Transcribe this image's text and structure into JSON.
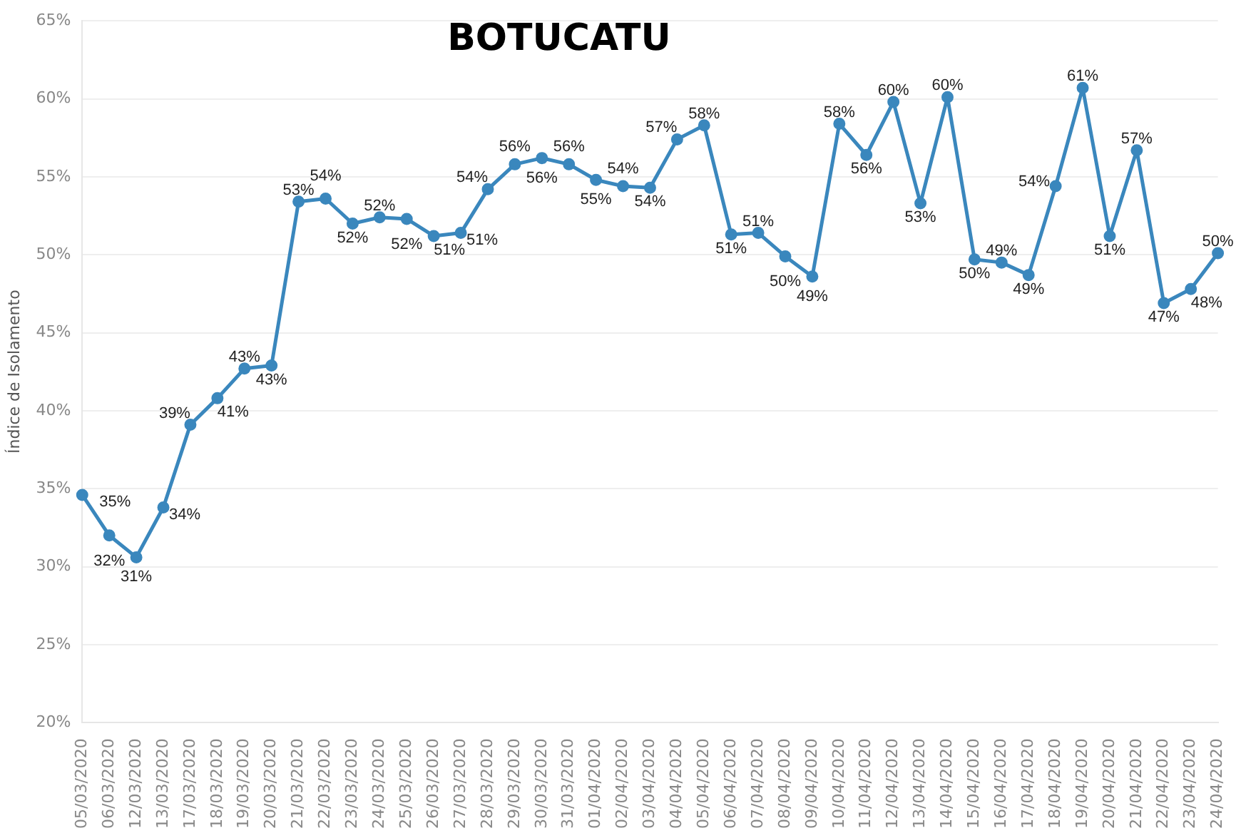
{
  "chart_data": {
    "type": "line",
    "title": "BOTUCATU",
    "ylabel": "Índice de Isolamento",
    "categories": [
      "05/03/2020",
      "06/03/2020",
      "12/03/2020",
      "13/03/2020",
      "17/03/2020",
      "18/03/2020",
      "19/03/2020",
      "20/03/2020",
      "21/03/2020",
      "22/03/2020",
      "23/03/2020",
      "24/03/2020",
      "25/03/2020",
      "26/03/2020",
      "27/03/2020",
      "28/03/2020",
      "29/03/2020",
      "30/03/2020",
      "31/03/2020",
      "01/04/2020",
      "02/04/2020",
      "03/04/2020",
      "04/04/2020",
      "05/04/2020",
      "06/04/2020",
      "07/04/2020",
      "08/04/2020",
      "09/04/2020",
      "10/04/2020",
      "11/04/2020",
      "12/04/2020",
      "13/04/2020",
      "14/04/2020",
      "15/04/2020",
      "16/04/2020",
      "17/04/2020",
      "18/04/2020",
      "19/04/2020",
      "20/04/2020",
      "21/04/2020",
      "22/04/2020",
      "23/04/2020",
      "24/04/2020"
    ],
    "series": [
      {
        "color": "#3a87bd",
        "values": [
          34.6,
          32.0,
          30.6,
          33.8,
          39.1,
          40.8,
          42.7,
          42.9,
          53.4,
          53.6,
          52.0,
          52.4,
          52.3,
          51.2,
          51.4,
          54.2,
          55.8,
          56.2,
          55.8,
          54.8,
          54.4,
          54.3,
          57.4,
          58.3,
          51.3,
          51.4,
          49.9,
          48.6,
          58.4,
          56.4,
          59.8,
          53.3,
          60.1,
          49.7,
          49.5,
          48.7,
          54.4,
          60.7,
          51.2,
          56.7,
          46.9,
          47.8,
          50.1
        ],
        "value_labels": [
          "35%",
          "32%",
          "31%",
          "34%",
          "39%",
          "41%",
          "43%",
          "43%",
          "53%",
          "54%",
          "52%",
          "52%",
          "52%",
          "51%",
          "51%",
          "54%",
          "56%",
          "56%",
          "56%",
          "55%",
          "54%",
          "54%",
          "57%",
          "58%",
          "51%",
          "51%",
          "50%",
          "49%",
          "58%",
          "56%",
          "60%",
          "53%",
          "60%",
          "50%",
          "49%",
          "49%",
          "54%",
          "61%",
          "51%",
          "57%",
          "47%",
          "48%",
          "50%"
        ]
      }
    ],
    "ylim": [
      20,
      65
    ],
    "yticks": [
      {
        "value": 20,
        "label": "20%"
      },
      {
        "value": 25,
        "label": "25%"
      },
      {
        "value": 30,
        "label": "30%"
      },
      {
        "value": 35,
        "label": "35%"
      },
      {
        "value": 40,
        "label": "40%"
      },
      {
        "value": 45,
        "label": "45%"
      },
      {
        "value": 50,
        "label": "50%"
      },
      {
        "value": 55,
        "label": "55%"
      },
      {
        "value": 60,
        "label": "60%"
      },
      {
        "value": 65,
        "label": "65%"
      }
    ],
    "grid": "y",
    "legend": false,
    "marker": "circle",
    "line_style": "solid"
  }
}
